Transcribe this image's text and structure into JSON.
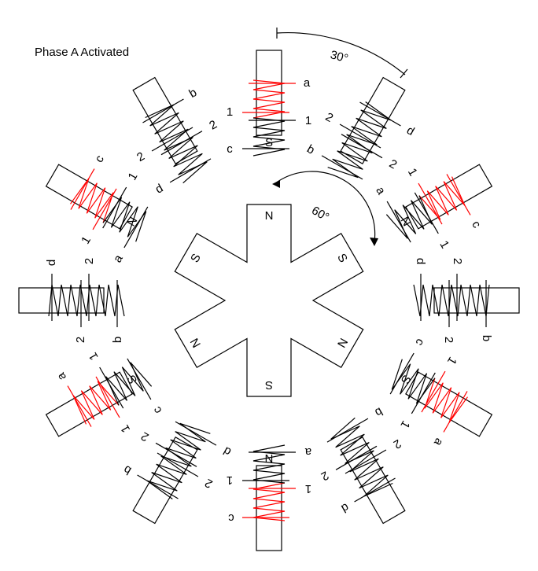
{
  "title": "Phase A Activated",
  "angles": {
    "small": "30°",
    "large": "60°"
  },
  "rotor": {
    "pole_labels": [
      "N",
      "S",
      "N",
      "S",
      "N",
      "S"
    ]
  },
  "stator": {
    "pole_labels": [
      "S",
      "N",
      "S",
      "N"
    ],
    "coils": [
      {
        "angle_deg": 0,
        "labels": [
          "a",
          "1",
          "1",
          "c"
        ],
        "active": true
      },
      {
        "angle_deg": 30,
        "labels": [
          "d",
          "2",
          "2",
          "b"
        ],
        "active": false
      },
      {
        "angle_deg": 60,
        "labels": [
          "c",
          "1",
          "1",
          "a"
        ],
        "active": true
      },
      {
        "angle_deg": 90,
        "labels": [
          "b",
          "2",
          "2",
          "d"
        ],
        "active": false
      },
      {
        "angle_deg": 120,
        "labels": [
          "a",
          "1",
          "1",
          "c"
        ],
        "active": true
      },
      {
        "angle_deg": 150,
        "labels": [
          "d",
          "2",
          "2",
          "b"
        ],
        "active": false
      },
      {
        "angle_deg": 180,
        "labels": [
          "c",
          "1",
          "1",
          "a"
        ],
        "active": true
      },
      {
        "angle_deg": 210,
        "labels": [
          "b",
          "2",
          "2",
          "d"
        ],
        "active": false
      },
      {
        "angle_deg": 240,
        "labels": [
          "a",
          "1",
          "1",
          "c"
        ],
        "active": true
      },
      {
        "angle_deg": 270,
        "labels": [
          "d",
          "2",
          "2",
          "b"
        ],
        "active": false
      },
      {
        "angle_deg": 300,
        "labels": [
          "c",
          "1",
          "1",
          "a"
        ],
        "active": true
      },
      {
        "angle_deg": 330,
        "labels": [
          "b",
          "2",
          "2",
          "d"
        ],
        "active": false
      }
    ]
  },
  "colors": {
    "active": "#ff0000",
    "ink": "#000000",
    "background": "#ffffff"
  }
}
